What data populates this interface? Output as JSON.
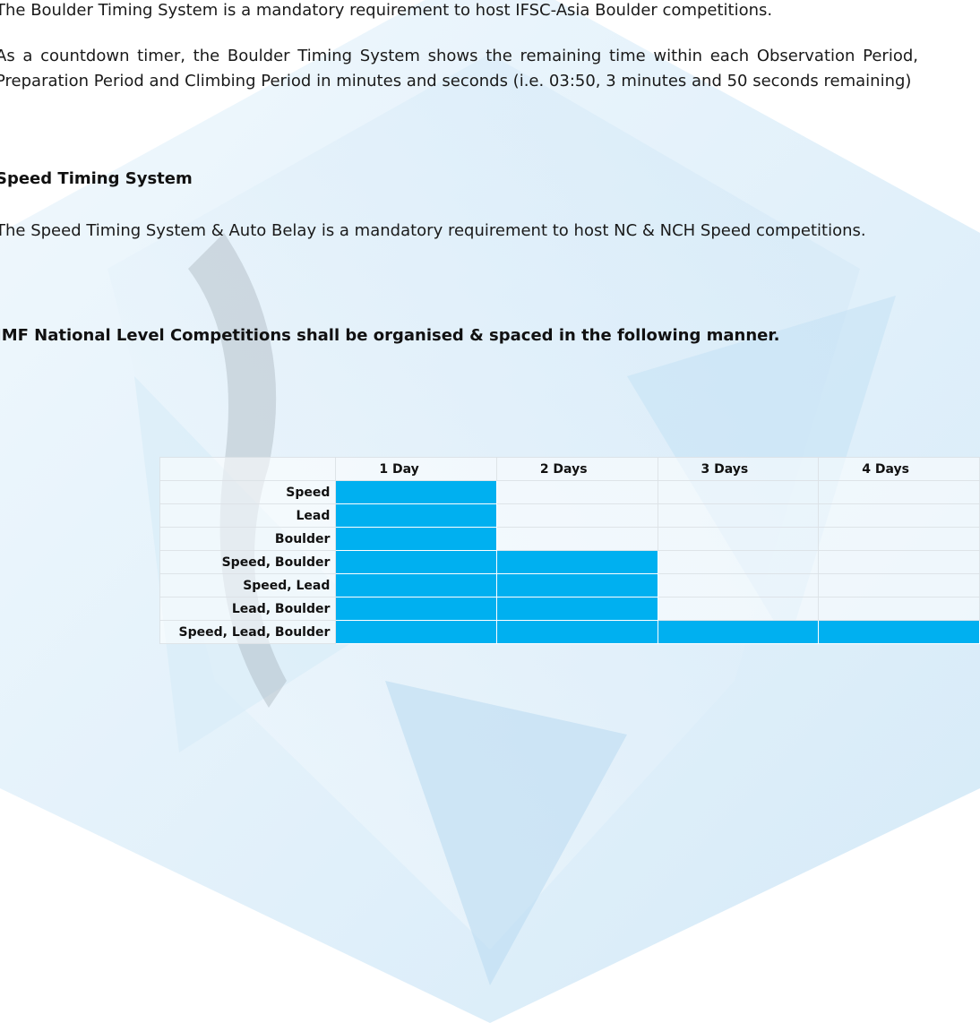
{
  "paragraphs": [
    "The Boulder Timing System is a mandatory requirement to host IFSC-Asia Boulder competitions.",
    "As a countdown timer, the Boulder Timing System shows the remaining time within each Observation Period, Preparation Period and Climbing Period in minutes and seconds (i.e. 03:50, 3 minutes and 50 seconds remaining)"
  ],
  "speed_section": {
    "heading": "Speed Timing System",
    "text": "The Speed Timing System & Auto Belay is a mandatory requirement to host NC & NCH Speed competitions."
  },
  "table_heading": "IMF National Level Competitions shall be organised & spaced in the following manner.",
  "table": {
    "columns": [
      "1 Day",
      "2 Days",
      "3 Days",
      "4 Days"
    ],
    "rows": [
      "Speed",
      "Lead",
      "Boulder",
      "Speed, Boulder",
      "Speed, Lead",
      "Lead, Boulder",
      "Speed, Lead, Boulder"
    ],
    "days": [
      1,
      1,
      1,
      2,
      2,
      2,
      4
    ],
    "fill_color": "#00b0f0"
  }
}
